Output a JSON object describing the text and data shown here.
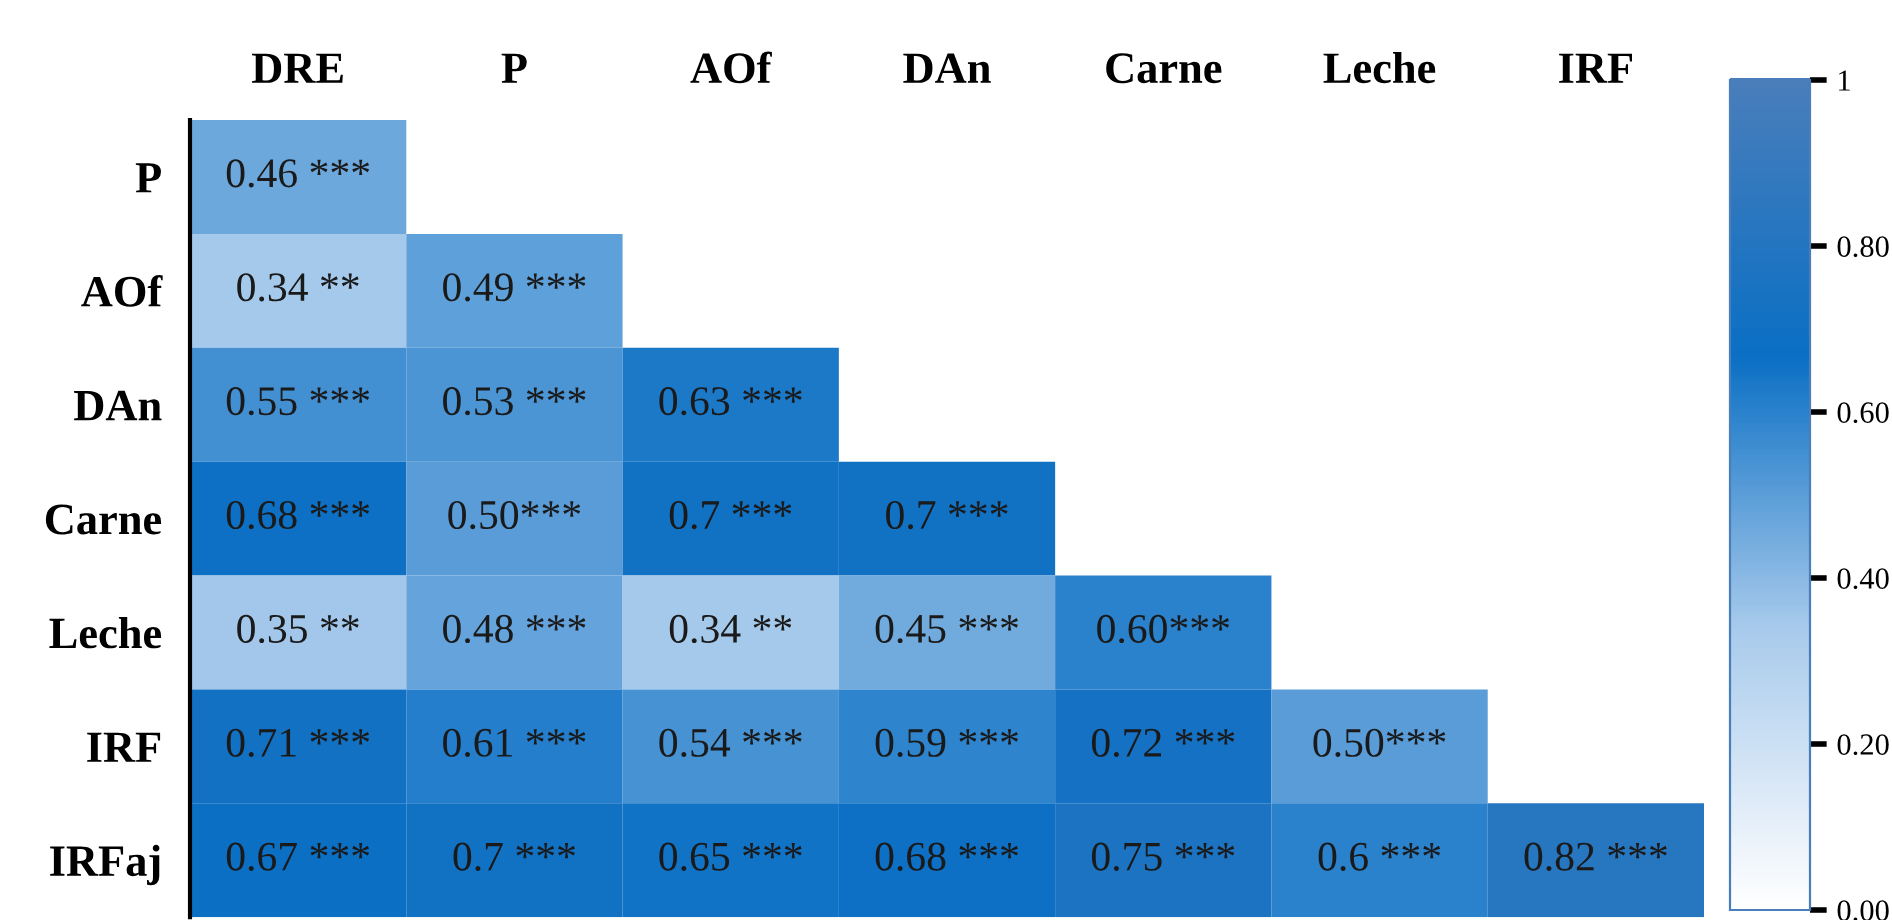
{
  "chart_data": {
    "type": "heatmap",
    "categories": [
      "DRE",
      "P",
      "AOf",
      "DAn",
      "Carne",
      "Leche",
      "IRF"
    ],
    "y_categories": [
      "P",
      "AOf",
      "DAn",
      "Carne",
      "Leche",
      "IRF",
      "IRFaj"
    ],
    "cells": [
      [
        0.46,
        null,
        null,
        null,
        null,
        null,
        null
      ],
      [
        0.34,
        0.49,
        null,
        null,
        null,
        null,
        null
      ],
      [
        0.55,
        0.53,
        0.63,
        null,
        null,
        null,
        null
      ],
      [
        0.68,
        0.5,
        0.7,
        0.7,
        null,
        null,
        null
      ],
      [
        0.35,
        0.48,
        0.34,
        0.45,
        0.6,
        null,
        null
      ],
      [
        0.71,
        0.61,
        0.54,
        0.59,
        0.72,
        0.5,
        null
      ],
      [
        0.67,
        0.7,
        0.65,
        0.68,
        0.75,
        0.6,
        0.82
      ]
    ],
    "cell_labels": [
      [
        "0.46 ***",
        null,
        null,
        null,
        null,
        null,
        null
      ],
      [
        "0.34 **",
        "0.49 ***",
        null,
        null,
        null,
        null,
        null
      ],
      [
        "0.55 ***",
        "0.53 ***",
        "0.63 ***",
        null,
        null,
        null,
        null
      ],
      [
        "0.68 ***",
        "0.50***",
        "0.7 ***",
        "0.7 ***",
        null,
        null,
        null
      ],
      [
        "0.35 **",
        "0.48 ***",
        "0.34 **",
        "0.45 ***",
        "0.60***",
        null,
        null
      ],
      [
        "0.71 ***",
        "0.61 ***",
        "0.54 ***",
        "0.59 ***",
        "0.72 ***",
        "0.50***",
        null
      ],
      [
        "0.67 ***",
        "0.7 ***",
        "0.65 ***",
        "0.68 ***",
        "0.75 ***",
        "0.6 ***",
        "0.82 ***"
      ]
    ],
    "colors": [
      "#ffffff",
      "#a9cbec",
      "#0a6fc4",
      "#4a7ebb"
    ],
    "clim": [
      0,
      1
    ],
    "cticks": [
      {
        "value": 0,
        "label": "0.00"
      },
      {
        "value": 0.2,
        "label": "0.20"
      },
      {
        "value": 0.4,
        "label": "0.40"
      },
      {
        "value": 0.6,
        "label": "0.60"
      },
      {
        "value": 0.8,
        "label": "0.80"
      },
      1
    ],
    "grid": false
  }
}
